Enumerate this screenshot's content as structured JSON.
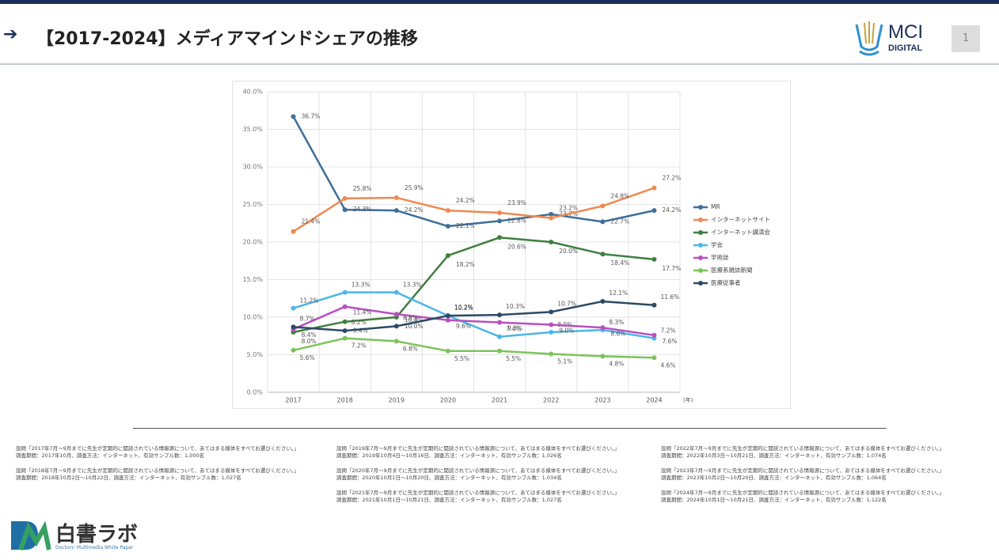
{
  "header": {
    "title": "【2017-2024】メディアマインドシェアの推移",
    "logo": "MCI",
    "logo_sub": "DIGITAL",
    "page": "1"
  },
  "chart_data": {
    "type": "line",
    "categories": [
      "2017",
      "2018",
      "2019",
      "2020",
      "2021",
      "2022",
      "2023",
      "2024"
    ],
    "x_unit": "(年)",
    "ylim": [
      0,
      40
    ],
    "yticks": [
      {
        "value": 0,
        "label": "0.0%"
      },
      {
        "value": 5,
        "label": "5.0%"
      },
      {
        "value": 10,
        "label": "10.0%"
      },
      {
        "value": 15,
        "label": "15.0%"
      },
      {
        "value": 20,
        "label": "20.0%"
      },
      {
        "value": 25,
        "label": "25.0%"
      },
      {
        "value": 30,
        "label": "30.0%"
      },
      {
        "value": 35,
        "label": "35.0%"
      },
      {
        "value": 40,
        "label": "40.0%"
      }
    ],
    "grid": true,
    "legend": "right",
    "series": [
      {
        "name": "MR",
        "color": "#3f6f99",
        "values": [
          36.7,
          24.3,
          24.2,
          22.1,
          22.8,
          23.7,
          22.7,
          24.2
        ],
        "value_labels": [
          "36.7%",
          "24.3%",
          "24.2%",
          "22.1%",
          "22.8%",
          "23.7%",
          "22.7%",
          "24.2%"
        ]
      },
      {
        "name": "インターネットサイト",
        "color": "#ef8a52",
        "values": [
          21.4,
          25.8,
          25.9,
          24.2,
          23.9,
          23.2,
          24.8,
          27.2
        ],
        "value_labels": [
          "21.4%",
          "25.8%",
          "25.9%",
          "24.2%",
          "23.9%",
          "23.2%",
          "24.8%",
          "27.2%"
        ]
      },
      {
        "name": "インターネット講演会",
        "color": "#3f7f3f",
        "values": [
          8.0,
          9.4,
          10.0,
          18.2,
          20.6,
          20.0,
          18.4,
          17.7
        ],
        "value_labels": [
          "8.0%",
          "9.4%",
          "10.0%",
          "18.2%",
          "20.6%",
          "20.0%",
          "18.4%",
          "17.7%"
        ]
      },
      {
        "name": "学会",
        "color": "#4cb6ea",
        "values": [
          11.2,
          13.3,
          13.3,
          10.2,
          7.4,
          8.0,
          8.3,
          7.2
        ],
        "value_labels": [
          "11.2%",
          "13.3%",
          "13.3%",
          "10.2%",
          "7.4%",
          "8.0%",
          "8.3%",
          "7.2%"
        ]
      },
      {
        "name": "学術誌",
        "color": "#b94fbf",
        "values": [
          8.4,
          11.4,
          10.4,
          9.6,
          9.3,
          9.0,
          8.6,
          7.6
        ],
        "value_labels": [
          "8.4%",
          "11.4%",
          "10.4%",
          "9.6%",
          "9.3%",
          "9.0%",
          "8.6%",
          "7.6%"
        ]
      },
      {
        "name": "医療系雑誌新聞",
        "color": "#7cc35a",
        "values": [
          5.6,
          7.2,
          6.8,
          5.5,
          5.5,
          5.1,
          4.8,
          4.6
        ],
        "value_labels": [
          "5.6%",
          "7.2%",
          "6.8%",
          "5.5%",
          "5.5%",
          "5.1%",
          "4.8%",
          "4.6%"
        ]
      },
      {
        "name": "医療従事者",
        "color": "#2c4a63",
        "values": [
          8.7,
          8.2,
          8.8,
          10.2,
          10.3,
          10.7,
          12.1,
          11.6
        ],
        "value_labels": [
          "8.7%",
          "8.2%",
          "8.8%",
          "10.2%",
          "10.3%",
          "10.7%",
          "12.1%",
          "11.6%"
        ]
      }
    ]
  },
  "notes": [
    [
      {
        "q": "設問「2017年7月～9月までに先生が定期的に閲読されている情報源について、あてはまる媒体をすべてお選びください。」",
        "s": "調査期間：2017年10月、調査方法：インターネット、有効サンプル数：1,000名"
      },
      {
        "q": "設問「2018年7月～9月までに先生が定期的に閲読されている情報源について、あてはまる媒体をすべてお選びください。」",
        "s": "調査期間：2018年10月2日～10月22日、調査方法：インターネット、有効サンプル数：1,027名"
      }
    ],
    [
      {
        "q": "設問「2019年7月～9月までに先生が定期的に閲読されている情報源について、あてはまる媒体をすべてお選びください。」",
        "s": "調査期間：2019年10月4日～10月16日、調査方法：インターネット、有効サンプル数：1,026名"
      },
      {
        "q": "設問「2020年7月～9月までに先生が定期的に閲読されている情報源について、あてはまる媒体をすべてお選びください。」",
        "s": "調査期間：2020年10月1日～10月20日、調査方法：インターネット、有効サンプル数：1,034名"
      },
      {
        "q": "設問「2021年7月～9月までに先生が定期的に閲読されている情報源について、あてはまる媒体をすべてお選びください。」",
        "s": "調査期間：2021年10月1日～10月21日、調査方法：インターネット、有効サンプル数：1,027名"
      }
    ],
    [
      {
        "q": "設問「2022年7月～9月までに先生が定期的に閲読されている情報源について、あてはまる媒体をすべてお選びください。」",
        "s": "調査期間：2022年10月3日～10月21日、調査方法：インターネット、有効サンプル数：1,074名"
      },
      {
        "q": "設問「2023年7月～9月までに先生が定期的に閲読されている情報源について、あてはまる媒体をすべてお選びください。」",
        "s": "調査期間：2023年10月2日～10月20日、調査方法：インターネット、有効サンプル数：1,064名"
      },
      {
        "q": "設問「2024年7月～9月までに先生が定期的に閲読されている情報源について、あてはまる媒体をすべてお選びください。」",
        "s": "調査期間：2024年10月1日～10月21日、調査方法：インターネット、有効サンプル数：1,122名"
      }
    ]
  ],
  "footer": {
    "logo": "白書ラボ",
    "logo_sub": "Doctors' Multimedia White Paper"
  }
}
